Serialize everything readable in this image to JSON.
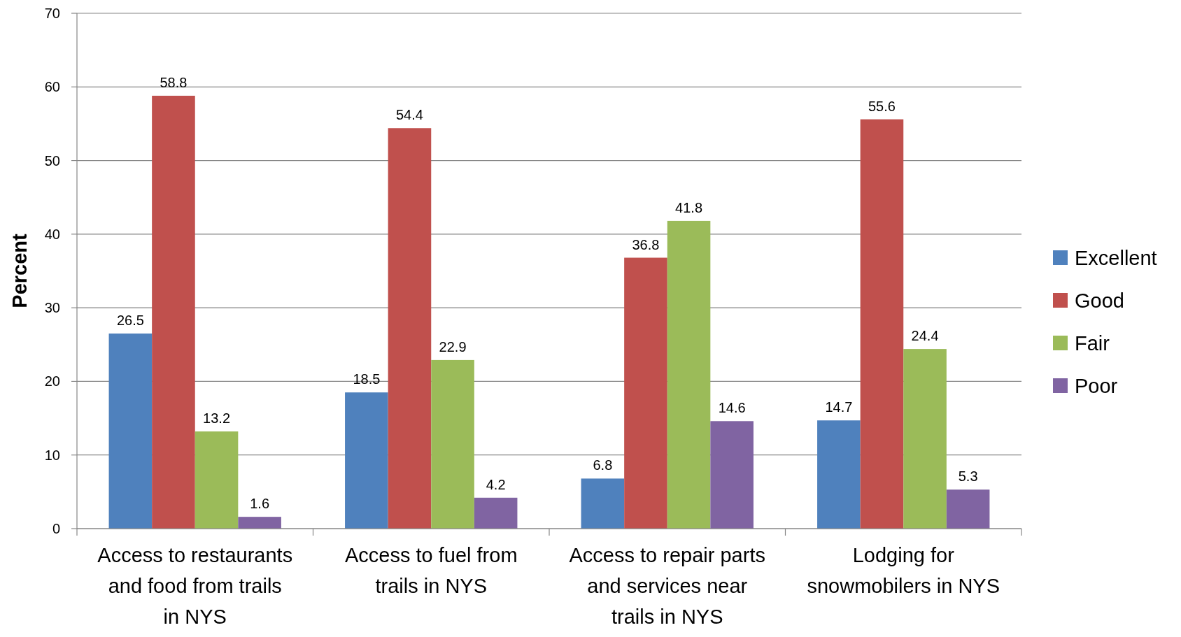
{
  "chart_data": {
    "type": "bar",
    "ylabel": "Percent",
    "categories": [
      "Access to restaurants and food from trails in NYS",
      "Access to fuel from trails in NYS",
      "Access to repair parts and services near trails in NYS",
      "Lodging for snowmobilers in NYS"
    ],
    "series": [
      {
        "name": "Excellent",
        "color": "#4f81bd",
        "values": [
          26.5,
          18.5,
          6.8,
          14.7
        ]
      },
      {
        "name": "Good",
        "color": "#c0504d",
        "values": [
          58.8,
          54.4,
          36.8,
          55.6
        ]
      },
      {
        "name": "Fair",
        "color": "#9bbb59",
        "values": [
          13.2,
          22.9,
          41.8,
          24.4
        ]
      },
      {
        "name": "Poor",
        "color": "#8064a2",
        "values": [
          1.6,
          4.2,
          14.6,
          5.3
        ]
      }
    ],
    "ylim": [
      0,
      70
    ],
    "yticks": [
      0,
      10,
      20,
      30,
      40,
      50,
      60,
      70
    ],
    "grid": "y",
    "legend": "right",
    "data_labels": true
  }
}
